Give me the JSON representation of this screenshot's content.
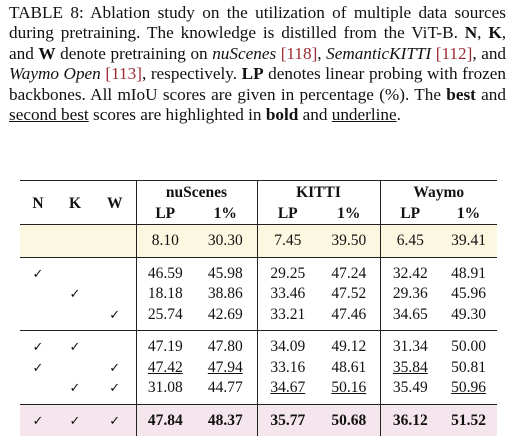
{
  "caption": [
    {
      "text": "TABLE 8: Ablation study on the utilization of multiple data sources during pretraining. The knowledge is distilled from the ViT-B. "
    },
    {
      "text": "N",
      "style": "bold"
    },
    {
      "text": ", "
    },
    {
      "text": "K",
      "style": "bold"
    },
    {
      "text": ", and "
    },
    {
      "text": "W",
      "style": "bold"
    },
    {
      "text": " denote pretraining on "
    },
    {
      "text": "nuScenes",
      "style": "italic"
    },
    {
      "text": " "
    },
    {
      "text": "[118]",
      "style": "cite"
    },
    {
      "text": ", "
    },
    {
      "text": "SemanticKITTI",
      "style": "italic"
    },
    {
      "text": " "
    },
    {
      "text": "[112]",
      "style": "cite"
    },
    {
      "text": ", and "
    },
    {
      "text": "Waymo Open",
      "style": "italic"
    },
    {
      "text": " "
    },
    {
      "text": "[113]",
      "style": "cite"
    },
    {
      "text": ", respectively. "
    },
    {
      "text": "LP",
      "style": "bold"
    },
    {
      "text": " denotes linear probing with frozen backbones. All mIoU scores are given in percentage (%). The "
    },
    {
      "text": "best",
      "style": "bold"
    },
    {
      "text": " and "
    },
    {
      "text": "second best",
      "style": "underline"
    },
    {
      "text": " scores are highlighted in "
    },
    {
      "text": "bold",
      "style": "bold"
    },
    {
      "text": " and "
    },
    {
      "text": "underline",
      "style": "underline"
    },
    {
      "text": "."
    }
  ],
  "table": {
    "columns": [
      "N",
      "K",
      "W"
    ],
    "datasets": [
      {
        "name": "nuScenes",
        "metrics": [
          "LP",
          "1%"
        ]
      },
      {
        "name": "KITTI",
        "metrics": [
          "LP",
          "1%"
        ]
      },
      {
        "name": "Waymo",
        "metrics": [
          "LP",
          "1%"
        ]
      }
    ],
    "groups": [
      {
        "background": "#fcf7e1",
        "rows": [
          {
            "cells": [
              null,
              null,
              null,
              "8.10",
              "30.30",
              "7.45",
              "39.50",
              "6.45",
              "39.41"
            ]
          }
        ]
      },
      {
        "rows": [
          {
            "cells": [
              "✓",
              null,
              null,
              "46.59",
              "45.98",
              "29.25",
              "47.24",
              "32.42",
              "48.91"
            ]
          },
          {
            "cells": [
              null,
              "✓",
              null,
              "18.18",
              "38.86",
              "33.46",
              "47.52",
              "29.36",
              "45.96"
            ]
          },
          {
            "cells": [
              null,
              null,
              "✓",
              "25.74",
              "42.69",
              "33.21",
              "47.46",
              "34.65",
              "49.30"
            ]
          }
        ]
      },
      {
        "rows": [
          {
            "cells": [
              "✓",
              "✓",
              null,
              "47.19",
              "47.80",
              "34.09",
              "49.12",
              "31.34",
              "50.00"
            ]
          },
          {
            "cells": [
              "✓",
              null,
              "✓",
              {
                "text": "47.42",
                "style": "underline"
              },
              {
                "text": "47.94",
                "style": "underline"
              },
              "33.16",
              "48.61",
              {
                "text": "35.84",
                "style": "underline"
              },
              "50.81"
            ]
          },
          {
            "cells": [
              null,
              "✓",
              "✓",
              "31.08",
              "44.77",
              {
                "text": "34.67",
                "style": "underline"
              },
              {
                "text": "50.16",
                "style": "underline"
              },
              "35.49",
              {
                "text": "50.96",
                "style": "underline"
              }
            ]
          }
        ]
      },
      {
        "background": "#f5e6ee",
        "rows": [
          {
            "cells": [
              "✓",
              "✓",
              "✓",
              {
                "text": "47.84",
                "style": "bold"
              },
              {
                "text": "48.37",
                "style": "bold"
              },
              {
                "text": "35.77",
                "style": "bold"
              },
              {
                "text": "50.68",
                "style": "bold"
              },
              {
                "text": "36.12",
                "style": "bold"
              },
              {
                "text": "51.52",
                "style": "bold"
              }
            ]
          }
        ]
      }
    ]
  }
}
